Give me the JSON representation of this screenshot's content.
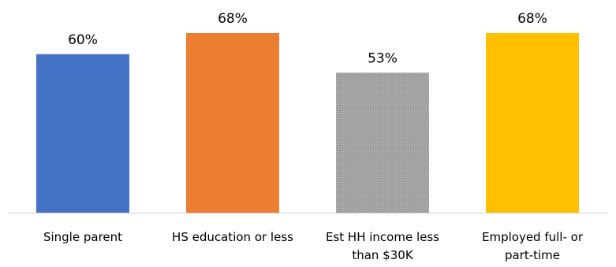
{
  "chart_data": {
    "type": "bar",
    "title": "",
    "xlabel": "",
    "ylabel": "",
    "ylim": [
      0,
      75
    ],
    "grid": false,
    "legend": "none",
    "categories": [
      "Single parent",
      "HS education or less",
      "Est HH income less than $30K",
      "Employed full- or part-time"
    ],
    "category_lines": [
      [
        "Single parent"
      ],
      [
        "HS education or less"
      ],
      [
        "Est HH income less",
        "than $30K"
      ],
      [
        "Employed full- or",
        "part-time"
      ]
    ],
    "values": [
      60,
      68,
      53,
      68
    ],
    "value_labels": [
      "60%",
      "68%",
      "53%",
      "68%"
    ],
    "colors": [
      "#4472C4",
      "#ED7D31",
      "#A5A5A5",
      "#FFC000"
    ],
    "pattern": [
      false,
      false,
      true,
      false
    ]
  }
}
